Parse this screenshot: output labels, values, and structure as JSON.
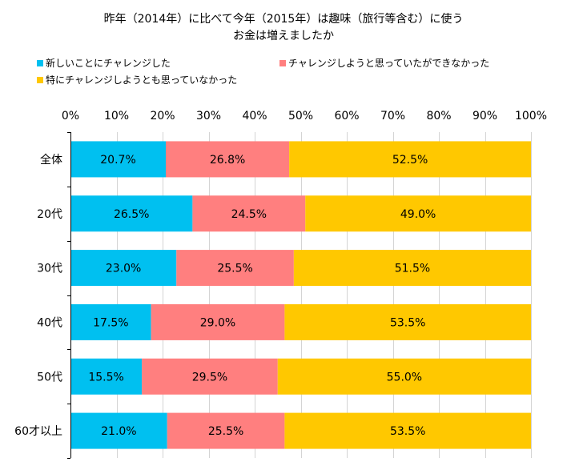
{
  "title": {
    "line1": "昨年（2014年）に比べて今年（2015年）は趣味（旅行等含む）に使う",
    "line2": "お金は増えましたか"
  },
  "legend": [
    "新しいことにチャレンジした",
    "チャレンジしようと思っていたができなかった",
    "特にチャレンジしようとも思っていなかった"
  ],
  "colors": [
    "#00C0F0",
    "#FF7F7F",
    "#FFC800"
  ],
  "chart_data": {
    "type": "bar",
    "orientation": "horizontal",
    "stacked": true,
    "categories": [
      "全体",
      "20代",
      "30代",
      "40代",
      "50代",
      "60才以上"
    ],
    "series": [
      {
        "name": "新しいことにチャレンジした",
        "values": [
          20.7,
          26.5,
          23.0,
          17.5,
          15.5,
          21.0
        ]
      },
      {
        "name": "チャレンジしようと思っていたができなかった",
        "values": [
          26.8,
          24.5,
          25.5,
          29.0,
          29.5,
          25.5
        ]
      },
      {
        "name": "特にチャレンジしようとも思っていなかった",
        "values": [
          52.5,
          49.0,
          51.5,
          53.5,
          55.0,
          53.5
        ]
      }
    ],
    "x_ticks": [
      "0%",
      "10%",
      "20%",
      "30%",
      "40%",
      "50%",
      "60%",
      "70%",
      "80%",
      "90%",
      "100%"
    ],
    "xlim": [
      0,
      100
    ],
    "grid": true,
    "legend_position": "top-left"
  }
}
